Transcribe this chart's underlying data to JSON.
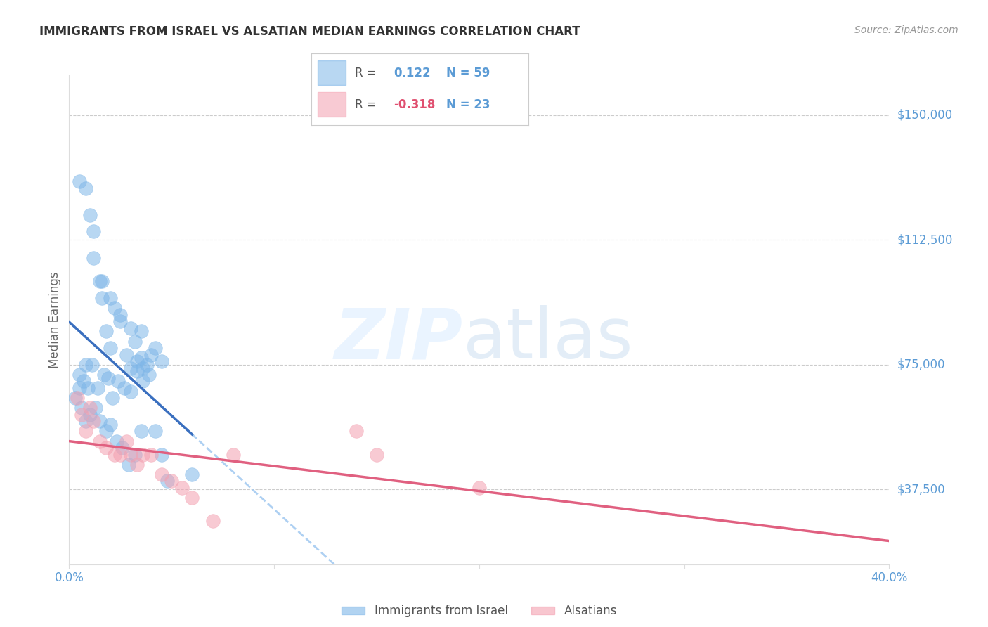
{
  "title": "IMMIGRANTS FROM ISRAEL VS ALSATIAN MEDIAN EARNINGS CORRELATION CHART",
  "source": "Source: ZipAtlas.com",
  "ylabel": "Median Earnings",
  "y_tick_labels": [
    "$37,500",
    "$75,000",
    "$112,500",
    "$150,000"
  ],
  "y_tick_values": [
    37500,
    75000,
    112500,
    150000
  ],
  "ylim": [
    15000,
    162000
  ],
  "xlim": [
    0.0,
    0.4
  ],
  "r_israel": 0.122,
  "n_israel": 59,
  "r_alsatian": -0.318,
  "n_alsatian": 23,
  "color_israel": "#7EB6E8",
  "color_alsatian": "#F4A0B0",
  "color_trendline_israel_solid": "#3A6FBF",
  "color_trendline_israel_dashed": "#A0C8F0",
  "color_trendline_alsatian": "#E06080",
  "color_axis_labels": "#5B9BD5",
  "color_grid": "#CCCCCC",
  "color_title": "#333333",
  "israel_x": [
    0.005,
    0.008,
    0.01,
    0.012,
    0.015,
    0.016,
    0.018,
    0.02,
    0.022,
    0.025,
    0.028,
    0.03,
    0.032,
    0.033,
    0.035,
    0.036,
    0.038,
    0.04,
    0.042,
    0.045,
    0.005,
    0.007,
    0.009,
    0.011,
    0.014,
    0.017,
    0.019,
    0.021,
    0.024,
    0.027,
    0.03,
    0.033,
    0.036,
    0.039,
    0.042,
    0.045,
    0.048,
    0.003,
    0.006,
    0.008,
    0.01,
    0.013,
    0.015,
    0.018,
    0.02,
    0.023,
    0.026,
    0.029,
    0.032,
    0.035,
    0.005,
    0.008,
    0.012,
    0.016,
    0.02,
    0.025,
    0.03,
    0.035,
    0.06
  ],
  "israel_y": [
    68000,
    75000,
    120000,
    115000,
    100000,
    95000,
    85000,
    80000,
    92000,
    88000,
    78000,
    74000,
    82000,
    76000,
    77000,
    74000,
    75000,
    78000,
    80000,
    76000,
    72000,
    70000,
    68000,
    75000,
    68000,
    72000,
    71000,
    65000,
    70000,
    68000,
    67000,
    73000,
    70000,
    72000,
    55000,
    48000,
    40000,
    65000,
    62000,
    58000,
    60000,
    62000,
    58000,
    55000,
    57000,
    52000,
    50000,
    45000,
    48000,
    55000,
    130000,
    128000,
    107000,
    100000,
    95000,
    90000,
    86000,
    85000,
    42000
  ],
  "alsatian_x": [
    0.004,
    0.006,
    0.008,
    0.01,
    0.012,
    0.015,
    0.018,
    0.022,
    0.025,
    0.028,
    0.03,
    0.033,
    0.036,
    0.04,
    0.045,
    0.05,
    0.055,
    0.06,
    0.07,
    0.08,
    0.14,
    0.15,
    0.2
  ],
  "alsatian_y": [
    65000,
    60000,
    55000,
    62000,
    58000,
    52000,
    50000,
    48000,
    48000,
    52000,
    48000,
    45000,
    48000,
    48000,
    42000,
    40000,
    38000,
    35000,
    28000,
    48000,
    55000,
    48000,
    38000
  ]
}
